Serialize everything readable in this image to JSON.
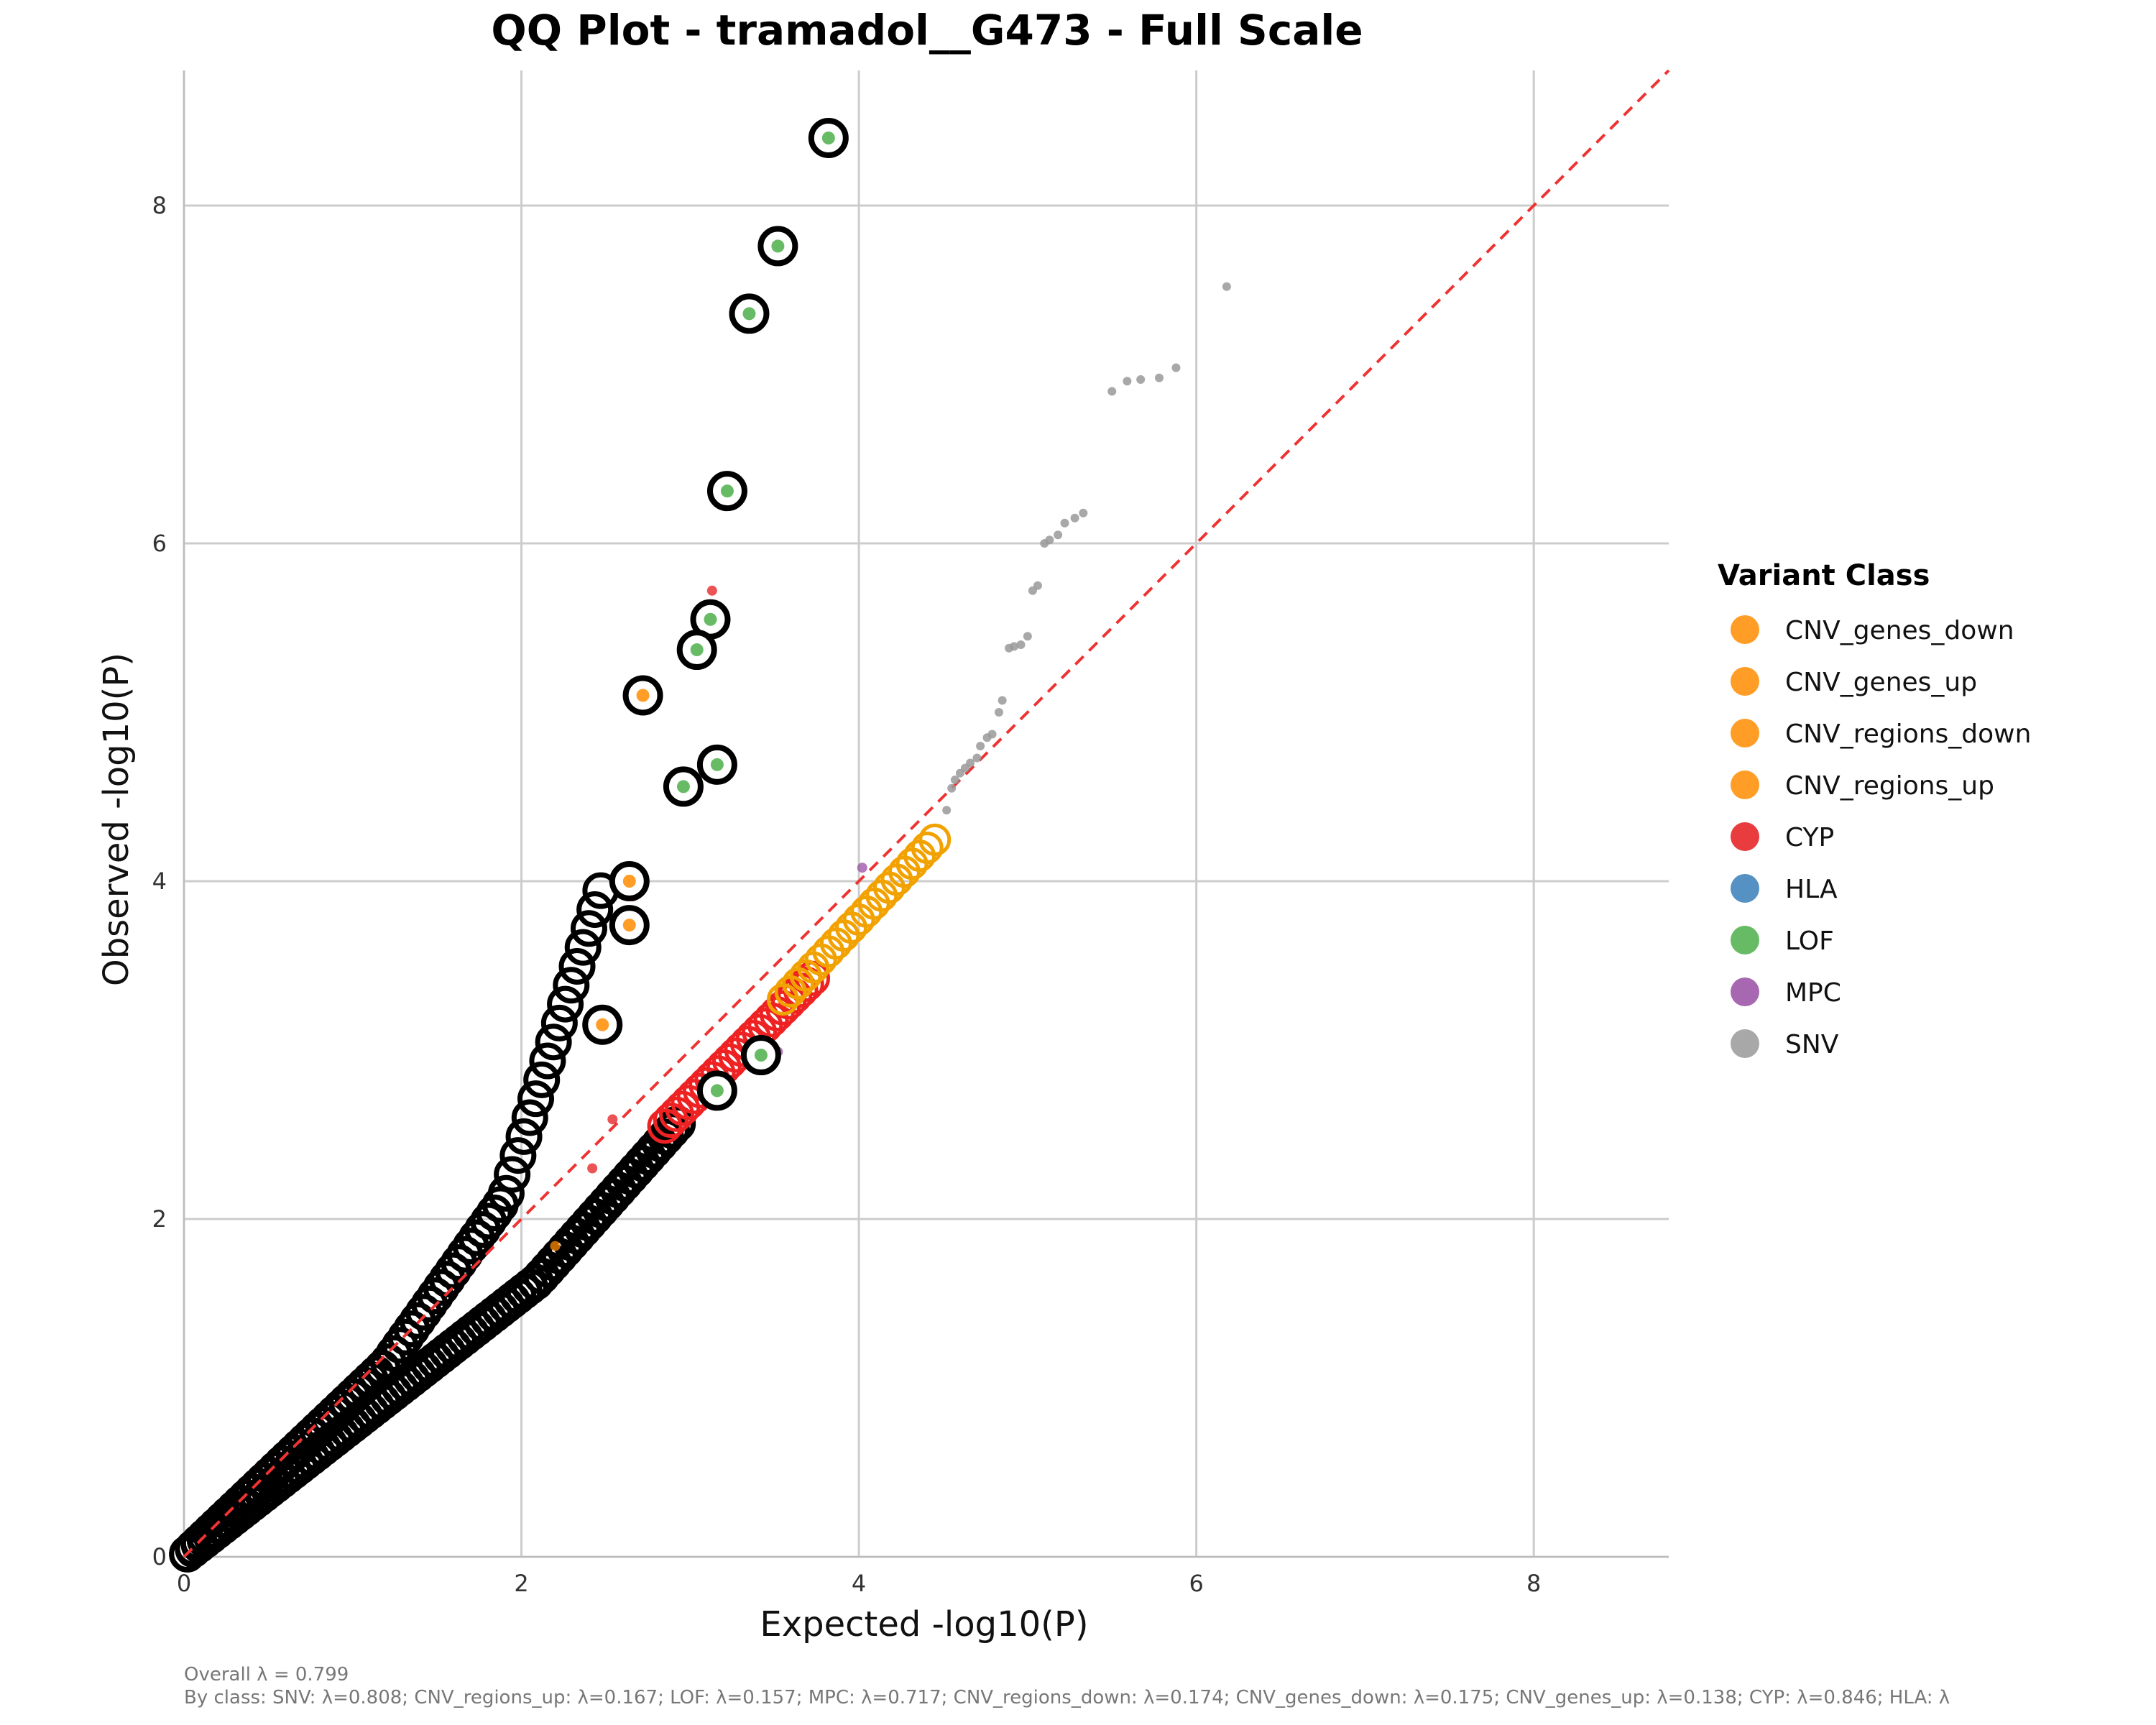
{
  "chart_data": {
    "type": "scatter",
    "title": "QQ Plot - tramadol__G473 - Full Scale",
    "xlabel": "Expected -log10(P)",
    "ylabel": "Observed -log10(P)",
    "xlim": [
      0,
      8.8
    ],
    "ylim": [
      0,
      8.8
    ],
    "x_ticks": [
      "0",
      "2",
      "4",
      "6",
      "8"
    ],
    "y_ticks": [
      "0",
      "2",
      "4",
      "6",
      "8"
    ],
    "grid": true,
    "reference_line": "y = x, red dashed",
    "legend": {
      "title": "Variant Class",
      "placement": "right",
      "entries": [
        {
          "name": "CNV_genes_down",
          "color": "#ff8c00"
        },
        {
          "name": "CNV_genes_up",
          "color": "#ff8c00"
        },
        {
          "name": "CNV_regions_down",
          "color": "#ff8c00"
        },
        {
          "name": "CNV_regions_up",
          "color": "#ff8c00"
        },
        {
          "name": "CYP",
          "color": "#e41a1c"
        },
        {
          "name": "HLA",
          "color": "#377eb8"
        },
        {
          "name": "LOF",
          "color": "#4daf4a"
        },
        {
          "name": "MPC",
          "color": "#984ea3"
        },
        {
          "name": "SNV",
          "color": "#999999"
        }
      ]
    },
    "highlighted_points": [
      {
        "x": 3.82,
        "y": 8.4,
        "class": "LOF"
      },
      {
        "x": 3.52,
        "y": 7.76,
        "class": "LOF"
      },
      {
        "x": 3.35,
        "y": 7.36,
        "class": "LOF"
      },
      {
        "x": 3.22,
        "y": 6.31,
        "class": "LOF"
      },
      {
        "x": 3.12,
        "y": 5.55,
        "class": "LOF"
      },
      {
        "x": 3.04,
        "y": 5.37,
        "class": "LOF"
      },
      {
        "x": 2.72,
        "y": 5.1,
        "class": "CNV_genes_down"
      },
      {
        "x": 3.16,
        "y": 4.69,
        "class": "LOF"
      },
      {
        "x": 2.96,
        "y": 4.56,
        "class": "LOF"
      },
      {
        "x": 2.64,
        "y": 4.0,
        "class": "CNV_genes_down"
      },
      {
        "x": 2.64,
        "y": 3.74,
        "class": "CNV_genes_down"
      },
      {
        "x": 2.48,
        "y": 3.15,
        "class": "CNV_genes_down"
      },
      {
        "x": 3.42,
        "y": 2.97,
        "class": "LOF"
      },
      {
        "x": 3.16,
        "y": 2.76,
        "class": "LOF"
      }
    ],
    "snv_points": [
      {
        "x": 6.18,
        "y": 7.52
      },
      {
        "x": 5.88,
        "y": 7.04
      },
      {
        "x": 5.78,
        "y": 6.98
      },
      {
        "x": 5.67,
        "y": 6.97
      },
      {
        "x": 5.59,
        "y": 6.96
      },
      {
        "x": 5.5,
        "y": 6.9
      },
      {
        "x": 5.33,
        "y": 6.18
      },
      {
        "x": 5.28,
        "y": 6.15
      },
      {
        "x": 5.22,
        "y": 6.12
      },
      {
        "x": 5.18,
        "y": 6.05
      },
      {
        "x": 5.13,
        "y": 6.02
      },
      {
        "x": 5.1,
        "y": 6.0
      },
      {
        "x": 5.06,
        "y": 5.75
      },
      {
        "x": 5.03,
        "y": 5.72
      },
      {
        "x": 5.0,
        "y": 5.45
      },
      {
        "x": 4.96,
        "y": 5.4
      },
      {
        "x": 4.92,
        "y": 5.39
      },
      {
        "x": 4.89,
        "y": 5.38
      },
      {
        "x": 4.85,
        "y": 5.07
      },
      {
        "x": 4.83,
        "y": 5.0
      },
      {
        "x": 4.79,
        "y": 4.87
      },
      {
        "x": 4.76,
        "y": 4.85
      },
      {
        "x": 4.72,
        "y": 4.8
      },
      {
        "x": 4.7,
        "y": 4.73
      },
      {
        "x": 4.66,
        "y": 4.7
      },
      {
        "x": 4.63,
        "y": 4.67
      },
      {
        "x": 4.6,
        "y": 4.64
      },
      {
        "x": 4.57,
        "y": 4.6
      },
      {
        "x": 4.55,
        "y": 4.55
      },
      {
        "x": 4.52,
        "y": 4.42
      }
    ],
    "other_points": [
      {
        "x": 3.13,
        "y": 5.72,
        "class": "CYP"
      },
      {
        "x": 4.02,
        "y": 4.08,
        "class": "MPC"
      },
      {
        "x": 3.52,
        "y": 2.99,
        "class": "MPC"
      },
      {
        "x": 2.54,
        "y": 2.59,
        "class": "CYP"
      },
      {
        "x": 2.42,
        "y": 2.3,
        "class": "CYP"
      },
      {
        "x": 2.66,
        "y": 3.91,
        "class": "CYP"
      },
      {
        "x": 2.2,
        "y": 1.84,
        "class": "CNV_genes_down"
      }
    ],
    "caption_lines": [
      "Overall λ = 0.799",
      "By class: SNV: λ=0.808; CNV_regions_up: λ=0.167; LOF: λ=0.157; MPC: λ=0.717; CNV_regions_down: λ=0.174; CNV_genes_down: λ=0.175; CNV_genes_up: λ=0.138; CYP: λ=0.846; HLA: λ"
    ]
  }
}
